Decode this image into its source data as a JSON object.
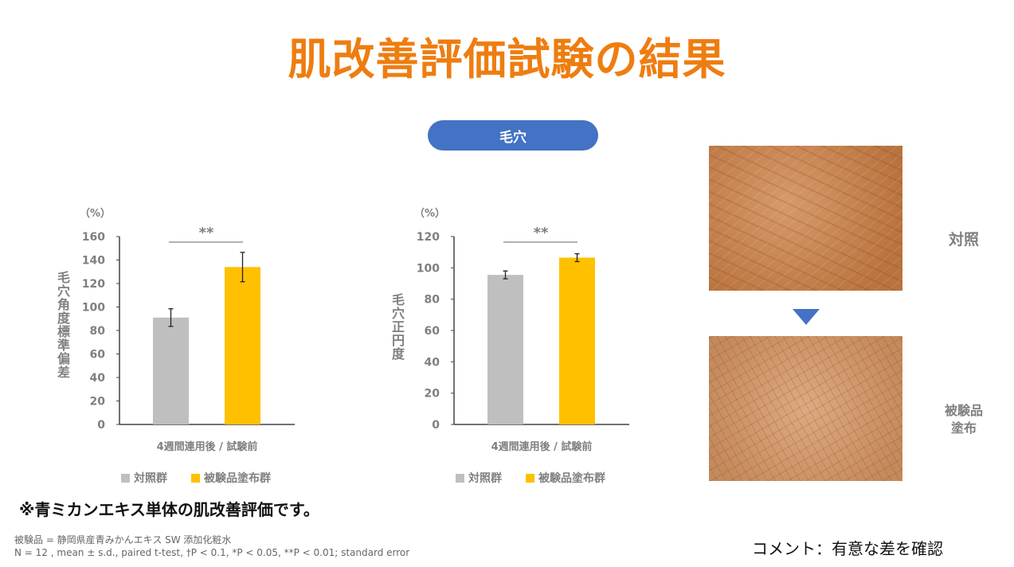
{
  "title": "肌改善評価試験の結果",
  "section_pill": "毛穴",
  "chart_data": [
    {
      "type": "bar",
      "ylabel": "毛穴角度標準偏差",
      "unit": "（%）",
      "xlabel": "4週間連用後 / 試験前",
      "ylim": [
        0,
        160
      ],
      "yticks": [
        0,
        20,
        40,
        60,
        80,
        100,
        120,
        140,
        160
      ],
      "series": [
        {
          "name": "対照群",
          "value": 91,
          "error": 7.5,
          "color": "#bfbfbf"
        },
        {
          "name": "被験品塗布群",
          "value": 134,
          "error": 12.5,
          "color": "#ffc000"
        }
      ],
      "significance": "**",
      "grid": false,
      "legend": "bottom"
    },
    {
      "type": "bar",
      "ylabel": "毛穴正円度",
      "unit": "（%）",
      "xlabel": "4週間連用後 / 試験前",
      "ylim": [
        0,
        120
      ],
      "yticks": [
        0,
        20,
        40,
        60,
        80,
        100,
        120
      ],
      "series": [
        {
          "name": "対照群",
          "value": 95.5,
          "error": 2.5,
          "color": "#bfbfbf"
        },
        {
          "name": "被験品塗布群",
          "value": 106.5,
          "error": 2.5,
          "color": "#ffc000"
        }
      ],
      "significance": "**",
      "grid": false,
      "legend": "bottom"
    }
  ],
  "photos": {
    "before_label": "対照",
    "after_label": "被験品\n塗布"
  },
  "note": "※青ミカンエキス単体の肌改善評価です。",
  "footnote1": "被験品 = 静岡県産青みかんエキス SW 添加化粧水",
  "footnote2": "N = 12 , mean ± s.d., paired t-test, †P < 0.1, *P < 0.05, **P < 0.01; standard error",
  "comment": "コメント：有意な差を確認",
  "colors": {
    "title": "#ee7d10",
    "pill": "#4472c4",
    "control": "#bfbfbf",
    "test": "#ffc000"
  }
}
